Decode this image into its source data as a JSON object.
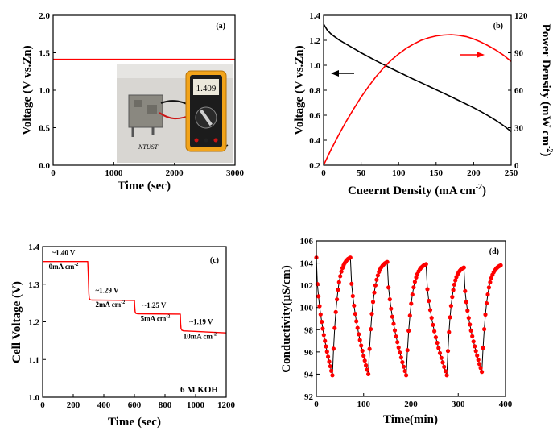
{
  "chart_data": [
    {
      "panel": "(a)",
      "type": "line",
      "xlabel": "Time (sec)",
      "ylabel": "Voltage (V vs.Zn)",
      "xlim": [
        0,
        3500
      ],
      "ylim": [
        0.0,
        2.0
      ],
      "xticks": [
        "0",
        "1000",
        "2000",
        "3000"
      ],
      "yticks": [
        "0.0",
        "0.5",
        "1.0",
        "1.5",
        "2.0"
      ],
      "color": "#ff0000",
      "series": [
        {
          "x": [
            0,
            3500
          ],
          "y": [
            1.41,
            1.41
          ]
        }
      ],
      "inset": {
        "device_label": "NTUST",
        "meter_reading": "1.409"
      }
    },
    {
      "panel": "(b)",
      "type": "line",
      "xlabel": "Cueernt Density (mA cm",
      "xlabel_sup": "-2",
      "xlabel_end": ")",
      "ylabel": "Voltage (V vs.Zn)",
      "ylabel2": "Power Density (mW cm",
      "ylabel2_sup": "-2",
      "ylabel2_end": ")",
      "xlim": [
        0,
        250
      ],
      "ylim": [
        0.2,
        1.4
      ],
      "ylim2": [
        0,
        120
      ],
      "xticks": [
        "0",
        "50",
        "100",
        "150",
        "200",
        "250"
      ],
      "yticks": [
        "0.2",
        "0.4",
        "0.6",
        "0.8",
        "1.0",
        "1.2",
        "1.4"
      ],
      "yticks2": [
        "0",
        "30",
        "60",
        "90",
        "120"
      ],
      "series": [
        {
          "axis": "left",
          "color": "#000000",
          "x": [
            0,
            5,
            10,
            20,
            30,
            40,
            50,
            60,
            70,
            80,
            90,
            100,
            110,
            120,
            130,
            140,
            150,
            160,
            170,
            180,
            190,
            200,
            210,
            220,
            230,
            240,
            250
          ],
          "y": [
            1.33,
            1.28,
            1.25,
            1.205,
            1.17,
            1.135,
            1.1,
            1.068,
            1.036,
            1.005,
            0.975,
            0.946,
            0.917,
            0.888,
            0.86,
            0.832,
            0.804,
            0.776,
            0.748,
            0.719,
            0.69,
            0.66,
            0.628,
            0.594,
            0.557,
            0.516,
            0.47
          ]
        },
        {
          "axis": "right",
          "color": "#ff0000",
          "x": [
            0,
            10,
            20,
            30,
            40,
            50,
            60,
            70,
            80,
            90,
            100,
            110,
            120,
            130,
            140,
            150,
            160,
            170,
            180,
            190,
            200,
            210,
            220,
            230,
            240,
            250
          ],
          "y": [
            0,
            12.5,
            24,
            35,
            45,
            54.5,
            63,
            71,
            78,
            84,
            89,
            93.5,
            97,
            100,
            102,
            103.5,
            104.2,
            104.5,
            104,
            103,
            101,
            98.5,
            95.5,
            92,
            88,
            83
          ]
        }
      ]
    },
    {
      "panel": "(c)",
      "type": "line",
      "xlabel": "Time (sec)",
      "ylabel": "Cell Voltage (V)",
      "xlim": [
        0,
        1200
      ],
      "ylim": [
        1.0,
        1.45
      ],
      "xticks": [
        "0",
        "200",
        "400",
        "600",
        "800",
        "1000",
        "1200"
      ],
      "yticks": [
        "1.0",
        "1.1",
        "1.2",
        "1.3",
        "1.4"
      ],
      "color": "#ff0000",
      "series": [
        {
          "x": [
            0,
            295,
            298,
            302,
            305,
            310,
            320,
            600,
            602,
            605,
            610,
            620,
            900,
            902,
            905,
            910,
            920,
            1200
          ],
          "y": [
            1.405,
            1.405,
            1.37,
            1.31,
            1.295,
            1.291,
            1.29,
            1.289,
            1.27,
            1.255,
            1.25,
            1.249,
            1.248,
            1.22,
            1.205,
            1.2,
            1.198,
            1.192
          ]
        }
      ],
      "annotations": [
        {
          "text": "~1.40 V",
          "x": 60,
          "y": 1.425
        },
        {
          "text": "0mA cm",
          "sup": "-2",
          "x": 40,
          "y": 1.383
        },
        {
          "text": "~1.29 V",
          "x": 345,
          "y": 1.312
        },
        {
          "text": "2mA cm",
          "sup": "-2",
          "x": 345,
          "y": 1.27
        },
        {
          "text": "~1.25 V",
          "x": 655,
          "y": 1.267
        },
        {
          "text": "5mA cm",
          "sup": "-2",
          "x": 640,
          "y": 1.228
        },
        {
          "text": "~1.19 V",
          "x": 960,
          "y": 1.218
        },
        {
          "text": "10mA cm",
          "sup": "-2",
          "x": 920,
          "y": 1.175
        }
      ],
      "note": "6 M KOH"
    },
    {
      "panel": "(d)",
      "type": "scatter",
      "xlabel": "Time(min)",
      "ylabel": "Conductivity(μS/cm)",
      "xlim": [
        0,
        400
      ],
      "ylim": [
        92,
        106
      ],
      "xticks": [
        "0",
        "100",
        "200",
        "300",
        "400"
      ],
      "yticks": [
        "92",
        "94",
        "96",
        "98",
        "100",
        "102",
        "104",
        "106"
      ],
      "color": "#ff0000",
      "line_color": "#000000",
      "cycles": [
        {
          "start": 0,
          "peak": 104.5,
          "fall_end": 34,
          "trough": 93.9,
          "rise_end": 72
        },
        {
          "start": 72,
          "peak": 104.5,
          "fall_end": 110,
          "trough": 94.0,
          "rise_end": 150
        },
        {
          "start": 150,
          "peak": 104.1,
          "fall_end": 190,
          "trough": 93.9,
          "rise_end": 232
        },
        {
          "start": 232,
          "peak": 103.9,
          "fall_end": 276,
          "trough": 93.9,
          "rise_end": 312
        },
        {
          "start": 312,
          "peak": 103.6,
          "fall_end": 350,
          "trough": 94.2,
          "rise_end": 390
        }
      ],
      "final_value": 103.8
    }
  ]
}
